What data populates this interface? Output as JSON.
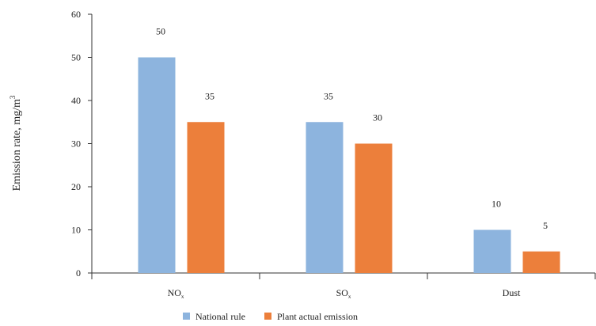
{
  "chart_data": {
    "type": "bar",
    "categories": [
      {
        "main": "NO",
        "sub": "x"
      },
      {
        "main": "SO",
        "sub": "x"
      },
      {
        "main": "Dust",
        "sub": ""
      }
    ],
    "series": [
      {
        "name": "National rule",
        "color": "#8db4de",
        "values": [
          50,
          35,
          10
        ]
      },
      {
        "name": "Plant actual emission",
        "color": "#ec7f3b",
        "values": [
          35,
          30,
          5
        ]
      }
    ],
    "data_labels": [
      [
        "50",
        "35",
        "10"
      ],
      [
        "35",
        "30",
        "5"
      ]
    ],
    "ylabel": {
      "main": "Emission rate, mg/m",
      "sup": "3"
    },
    "xlabel": "",
    "ylim": [
      0,
      60
    ],
    "yticks": [
      "0",
      "10",
      "20",
      "30",
      "40",
      "50",
      "60"
    ],
    "grid": false,
    "legend_position": "bottom-center"
  }
}
